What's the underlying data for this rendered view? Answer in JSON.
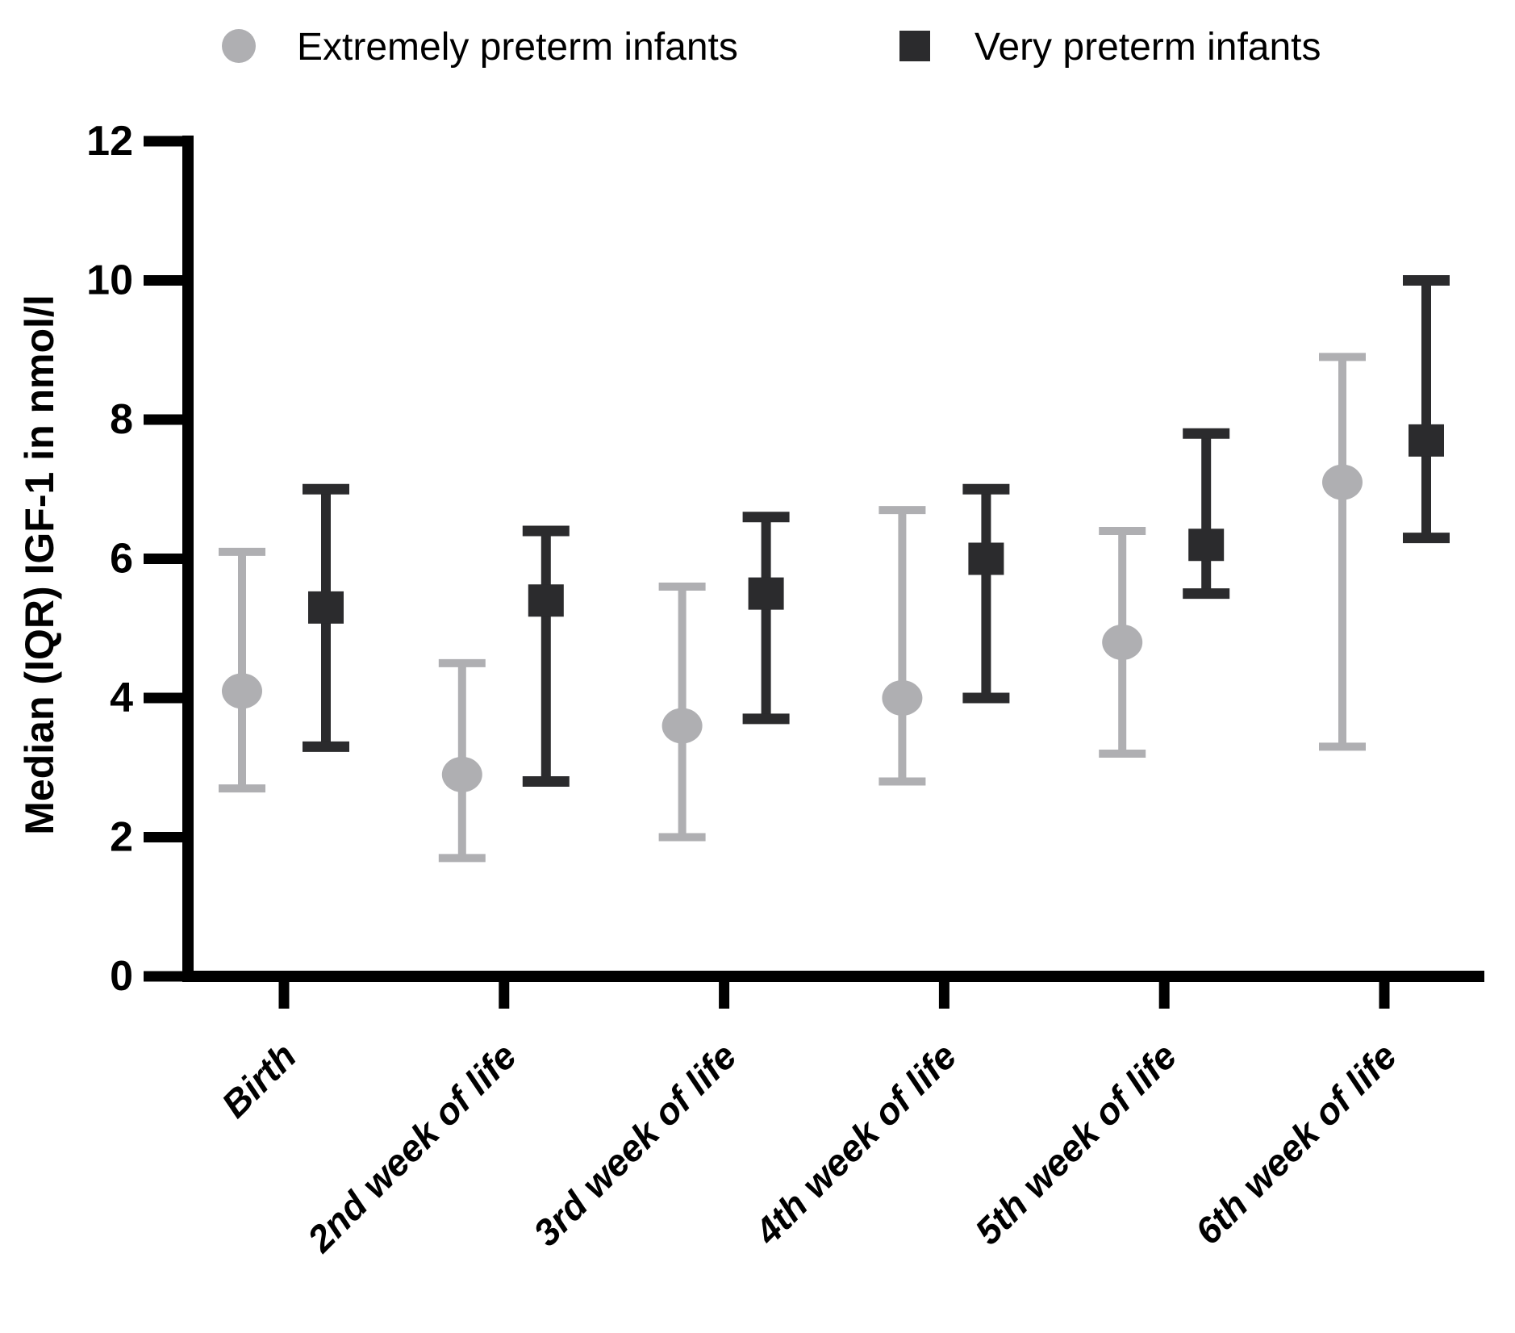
{
  "figure": {
    "background": "#ffffff",
    "axis_color": "#000000",
    "text_color": "#000000"
  },
  "chart_data": {
    "type": "scatter",
    "subtype": "median-iqr-errorbar",
    "title": "",
    "xlabel": "",
    "ylabel": "Median (IQR) IGF-1 in nmol/l",
    "ylim": [
      0,
      12
    ],
    "ytick_step": 2,
    "yticks": [
      "0",
      "2",
      "4",
      "6",
      "8",
      "10",
      "12"
    ],
    "grid": false,
    "legend_position": "top",
    "categories": [
      "Birth",
      "2nd week of life",
      "3rd week of life",
      "4th week of life",
      "5th week of life",
      "6th week of life"
    ],
    "series": [
      {
        "name": "Extremely preterm infants",
        "marker": "circle",
        "color": "#afafb2",
        "median": [
          4.1,
          2.9,
          3.6,
          4.0,
          4.8,
          7.1
        ],
        "q1": [
          2.7,
          1.7,
          2.0,
          2.8,
          3.2,
          3.3
        ],
        "q3": [
          6.1,
          4.5,
          5.6,
          6.7,
          6.4,
          8.9
        ]
      },
      {
        "name": "Very preterm infants",
        "marker": "square",
        "color": "#2b2b2d",
        "median": [
          5.3,
          5.4,
          5.5,
          6.0,
          6.2,
          7.7
        ],
        "q1": [
          3.3,
          2.8,
          3.7,
          4.0,
          5.5,
          6.3
        ],
        "q3": [
          7.0,
          6.4,
          6.6,
          7.0,
          7.8,
          10.0
        ]
      }
    ]
  }
}
